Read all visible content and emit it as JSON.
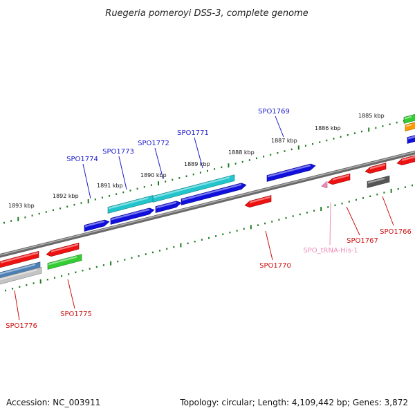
{
  "title": "Ruegeria pomeroyi DSS-3, complete genome",
  "footer": {
    "accession": "Accession: NC_003911",
    "topology": "Topology: circular; Length: 4,109,442 bp; Genes: 3,872"
  },
  "colors": {
    "backbone": "#8a8a8a",
    "ticks": "#1e7a1e",
    "forward_label": "#1a1acc",
    "reverse_label": "#cc1111",
    "trna_label": "#f08ab8"
  },
  "kbp_labels": [
    "1885 kbp",
    "1886 kbp",
    "1887 kbp",
    "1888 kbp",
    "1889 kbp",
    "1890 kbp",
    "1891 kbp",
    "1892 kbp",
    "1893 kbp"
  ],
  "genes": [
    {
      "id": "SPO1769",
      "strand": "forward",
      "color": "#1010dd"
    },
    {
      "id": "SPO1771",
      "strand": "forward",
      "color": "#1010dd"
    },
    {
      "id": "SPO1772",
      "strand": "forward",
      "color": "#1010dd"
    },
    {
      "id": "SPO1773",
      "strand": "forward",
      "color": "#1010dd"
    },
    {
      "id": "SPO1774",
      "strand": "forward",
      "color": "#1010dd"
    },
    {
      "id": "SPO1766",
      "strand": "reverse",
      "color": "#ee1111"
    },
    {
      "id": "SPO1767",
      "strand": "reverse",
      "color": "#ee1111"
    },
    {
      "id": "SPO_tRNA-His-1",
      "strand": "reverse",
      "color": "#f08ab8"
    },
    {
      "id": "SPO1770",
      "strand": "reverse",
      "color": "#ee1111"
    },
    {
      "id": "SPO1775",
      "strand": "reverse",
      "color": "#33cc33"
    },
    {
      "id": "SPO1776",
      "strand": "reverse",
      "color": "#ee1111"
    }
  ]
}
